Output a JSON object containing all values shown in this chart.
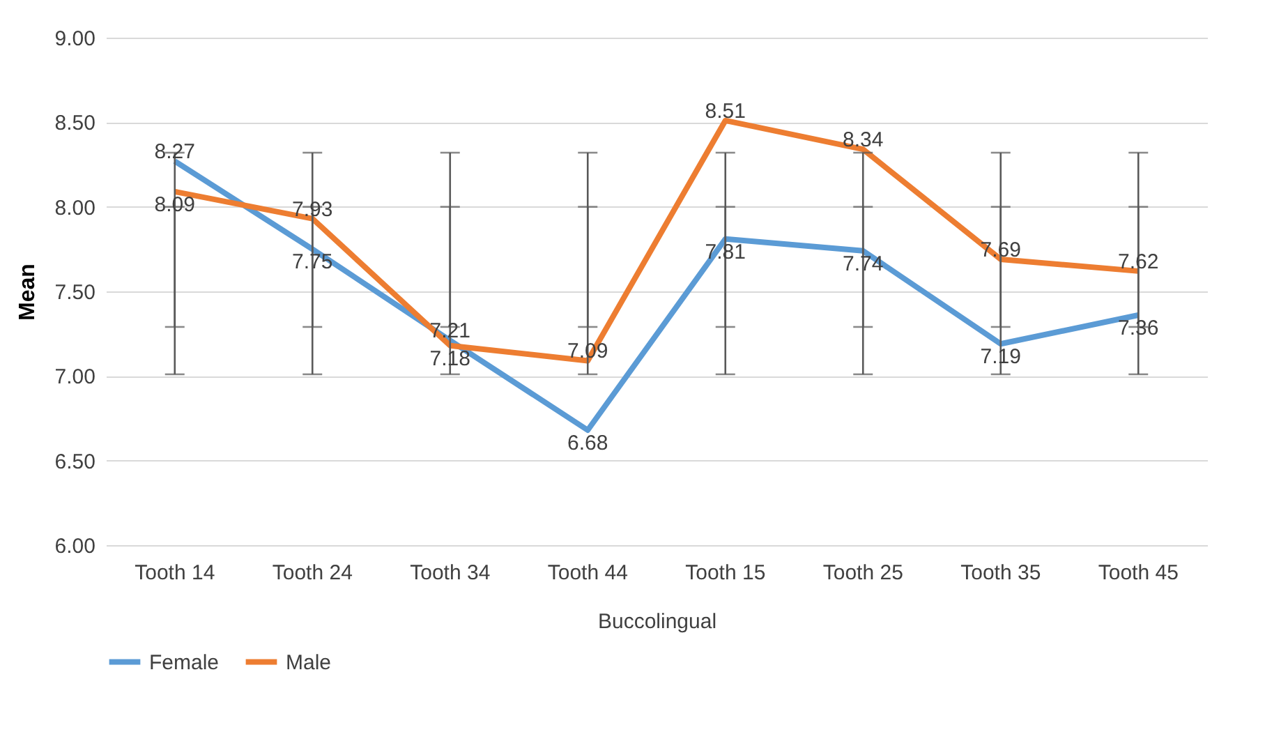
{
  "chart_data": {
    "type": "line",
    "ylabel": "Mean",
    "xlabel": "Buccolingual",
    "categories": [
      "Tooth 14",
      "Tooth 24",
      "Tooth 34",
      "Tooth 44",
      "Tooth 15",
      "Tooth 25",
      "Tooth 35",
      "Tooth 45"
    ],
    "series": [
      {
        "name": "Female",
        "color": "#5b9bd5",
        "values": [
          8.27,
          7.75,
          7.21,
          6.68,
          7.81,
          7.74,
          7.19,
          7.36
        ],
        "errors": [
          [
            7.01,
            8.0
          ],
          [
            7.01,
            8.0
          ],
          [
            7.01,
            8.0
          ],
          [
            7.01,
            8.0
          ],
          [
            7.01,
            8.0
          ],
          [
            7.01,
            8.0
          ],
          [
            7.01,
            8.0
          ],
          [
            7.01,
            8.0
          ]
        ]
      },
      {
        "name": "Male",
        "color": "#ed7d31",
        "values": [
          8.09,
          7.93,
          7.18,
          7.09,
          8.51,
          8.34,
          7.69,
          7.62
        ],
        "errors": [
          [
            7.29,
            8.32
          ],
          [
            7.29,
            8.32
          ],
          [
            7.29,
            8.32
          ],
          [
            7.29,
            8.32
          ],
          [
            7.29,
            8.32
          ],
          [
            7.29,
            8.32
          ],
          [
            7.29,
            8.32
          ],
          [
            7.29,
            8.32
          ]
        ]
      }
    ],
    "ylim": [
      6,
      9
    ],
    "yticks": [
      {
        "value": 6,
        "label": "6.00"
      },
      {
        "value": 6.5,
        "label": "6.50"
      },
      {
        "value": 7,
        "label": "7.00"
      },
      {
        "value": 7.5,
        "label": "7.50"
      },
      {
        "value": 8,
        "label": "8.00"
      },
      {
        "value": 8.5,
        "label": "8.50"
      },
      {
        "value": 9,
        "label": "9.00"
      }
    ],
    "grid": "y",
    "legend": "bottom",
    "data_labels": true,
    "marker": "none",
    "line_style": "solid"
  }
}
